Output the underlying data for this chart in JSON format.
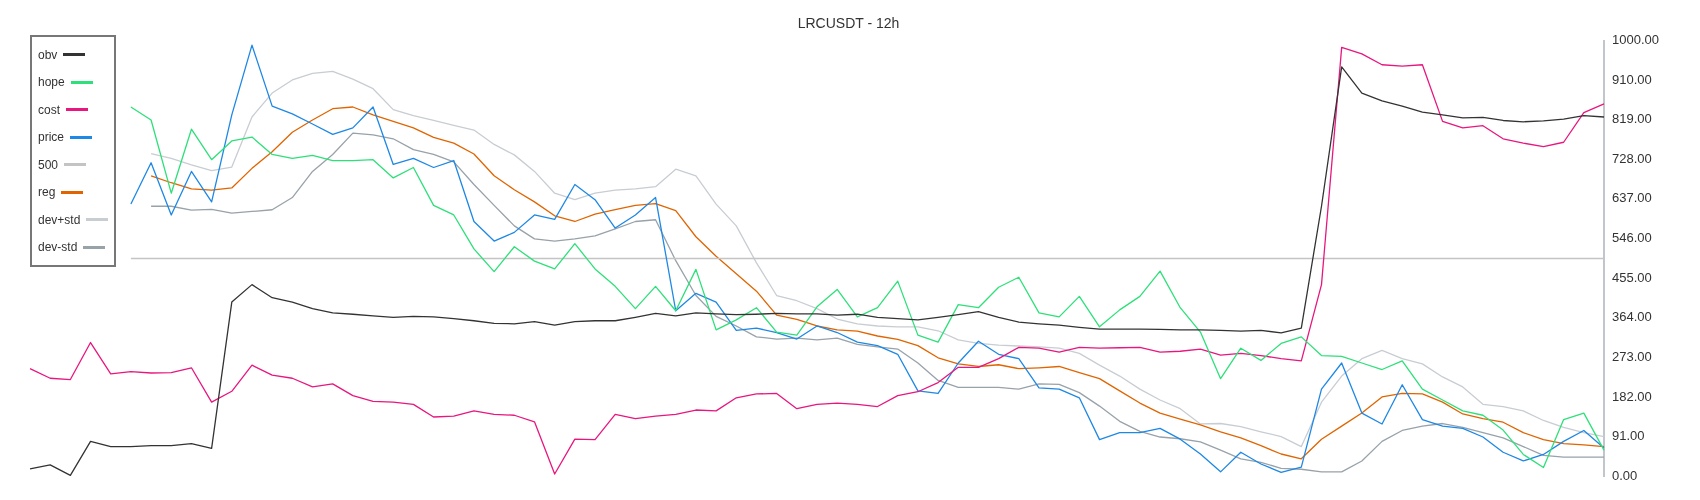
{
  "chart_data": {
    "type": "line",
    "title": "LRCUSDT - 12h",
    "categories": [
      null,
      null,
      null,
      null,
      null,
      null,
      null,
      null,
      null,
      null,
      null,
      null,
      null,
      null,
      null,
      null,
      null,
      null,
      null,
      null,
      null,
      null,
      null,
      null,
      null,
      null,
      null,
      null,
      null,
      null,
      null,
      null,
      null,
      null,
      null,
      null,
      null,
      null,
      null,
      null,
      null,
      null,
      null,
      null,
      null,
      null,
      null,
      null,
      null,
      null,
      null,
      null,
      null,
      null,
      null,
      null,
      null,
      null,
      null,
      null,
      null,
      null,
      null,
      null,
      null,
      null,
      null,
      null,
      null,
      null,
      null,
      null,
      null,
      null,
      null,
      null,
      null,
      null,
      null
    ],
    "series": [
      {
        "name": "obv",
        "color": "#333333",
        "values": [
          17,
          26,
          2,
          80,
          68,
          68,
          70,
          70,
          75,
          64,
          400,
          440,
          410,
          400,
          385,
          375,
          372,
          368,
          365,
          367,
          366,
          362,
          357,
          351,
          350,
          355,
          347,
          355,
          357,
          357,
          365,
          374,
          368,
          375,
          373,
          371,
          372,
          374,
          373,
          373,
          370,
          372,
          365,
          362,
          359,
          365,
          371,
          378,
          365,
          354,
          350,
          347,
          342,
          338,
          338,
          338,
          337,
          336,
          336,
          335,
          333,
          335,
          329,
          340,
          620,
          940,
          880,
          862,
          850,
          836,
          830,
          823,
          824,
          817,
          814,
          816,
          820,
          828,
          825
        ]
      },
      {
        "name": "hope",
        "color": "#2ee07a",
        "values": [
          null,
          null,
          null,
          null,
          null,
          848,
          818,
          650,
          797,
          727,
          770,
          779,
          739,
          730,
          737,
          725,
          725,
          727,
          685,
          709,
          622,
          600,
          522,
          470,
          527,
          494,
          476,
          534,
          476,
          436,
          385,
          436,
          380,
          475,
          336,
          359,
          387,
          331,
          324,
          389,
          429,
          366,
          387,
          448,
          324,
          308,
          394,
          387,
          434,
          457,
          375,
          366,
          413,
          343,
          382,
          413,
          471,
          387,
          331,
          224,
          294,
          266,
          305,
          320,
          277,
          275,
          260,
          245,
          265,
          200,
          175,
          150,
          140,
          106,
          50,
          20,
          130,
          145,
          60
        ]
      },
      {
        "name": "cost",
        "color": "#e8177f",
        "values": [
          247,
          225,
          222,
          307,
          235,
          240,
          237,
          238,
          249,
          170,
          195,
          255,
          232,
          225,
          205,
          212,
          185,
          172,
          170,
          165,
          136,
          138,
          150,
          142,
          140,
          125,
          5,
          85,
          84,
          142,
          132,
          138,
          142,
          152,
          150,
          180,
          189,
          190,
          155,
          165,
          168,
          165,
          160,
          185,
          194,
          215,
          250,
          250,
          270,
          296,
          294,
          285,
          296,
          294,
          295,
          296,
          285,
          287,
          292,
          278,
          282,
          277,
          270,
          265,
          440,
          985,
          970,
          945,
          942,
          945,
          815,
          800,
          805,
          775,
          765,
          757,
          767,
          835,
          855
        ]
      },
      {
        "name": "price",
        "color": "#1e88e5",
        "values": [
          null,
          null,
          null,
          null,
          null,
          625,
          720,
          600,
          700,
          630,
          830,
          990,
          850,
          832,
          809,
          785,
          800,
          848,
          716,
          730,
          709,
          725,
          585,
          540,
          560,
          600,
          590,
          670,
          635,
          570,
          600,
          640,
          380,
          420,
          400,
          335,
          340,
          330,
          315,
          345,
          330,
          308,
          300,
          280,
          196,
          190,
          260,
          310,
          280,
          270,
          203,
          200,
          180,
          84,
          100,
          100,
          110,
          85,
          51,
          10,
          55,
          28,
          9,
          21,
          200,
          260,
          145,
          120,
          210,
          130,
          115,
          110,
          90,
          55,
          35,
          50,
          80,
          105,
          65
        ]
      },
      {
        "name": "500",
        "color": "#c4c4c4",
        "values": [
          null,
          null,
          null,
          null,
          null,
          500,
          500,
          500,
          500,
          500,
          500,
          500,
          500,
          500,
          500,
          500,
          500,
          500,
          500,
          500,
          500,
          500,
          500,
          500,
          500,
          500,
          500,
          500,
          500,
          500,
          500,
          500,
          500,
          500,
          500,
          500,
          500,
          500,
          500,
          500,
          500,
          500,
          500,
          500,
          500,
          500,
          500,
          500,
          500,
          500,
          500,
          500,
          500,
          500,
          500,
          500,
          500,
          500,
          500,
          500,
          500,
          500,
          500,
          500,
          500,
          500,
          500,
          500,
          500,
          500,
          500,
          500,
          500,
          500,
          500,
          500,
          500,
          500,
          500
        ]
      },
      {
        "name": "reg",
        "color": "#e06500",
        "values": [
          null,
          null,
          null,
          null,
          null,
          null,
          690,
          674,
          660,
          657,
          662,
          707,
          745,
          790,
          818,
          844,
          848,
          830,
          815,
          800,
          778,
          765,
          740,
          690,
          658,
          630,
          598,
          585,
          602,
          612,
          622,
          626,
          610,
          550,
          505,
          465,
          425,
          370,
          360,
          345,
          336,
          333,
          322,
          314,
          300,
          272,
          258,
          252,
          256,
          247,
          249,
          252,
          238,
          224,
          196,
          168,
          145,
          131,
          118,
          102,
          88,
          70,
          51,
          40,
          85,
          115,
          145,
          182,
          190,
          189,
          170,
          143,
          132,
          124,
          100,
          84,
          75,
          72,
          68
        ]
      },
      {
        "name": "dev+std",
        "color": "#c8cdd2",
        "values": [
          null,
          null,
          null,
          null,
          null,
          null,
          741,
          730,
          715,
          702,
          710,
          825,
          880,
          910,
          925,
          930,
          912,
          890,
          842,
          828,
          817,
          806,
          795,
          762,
          738,
          700,
          650,
          635,
          650,
          657,
          660,
          665,
          705,
          690,
          625,
          575,
          490,
          415,
          403,
          385,
          361,
          350,
          345,
          343,
          343,
          334,
          313,
          305,
          301,
          299,
          297,
          294,
          282,
          255,
          230,
          200,
          175,
          155,
          120,
          121,
          114,
          102,
          91,
          68,
          170,
          230,
          270,
          289,
          270,
          258,
          228,
          205,
          165,
          160,
          150,
          128,
          112,
          100,
          91
        ]
      },
      {
        "name": "dev-std",
        "color": "#98a2a9",
        "values": [
          null,
          null,
          null,
          null,
          null,
          null,
          620,
          620,
          611,
          613,
          604,
          608,
          612,
          640,
          700,
          739,
          788,
          784,
          775,
          750,
          739,
          722,
          670,
          622,
          575,
          545,
          540,
          545,
          552,
          568,
          585,
          589,
          495,
          415,
          367,
          345,
          320,
          315,
          317,
          313,
          317,
          303,
          297,
          292,
          260,
          220,
          204,
          204,
          204,
          200,
          212,
          211,
          192,
          161,
          126,
          103,
          90,
          86,
          79,
          60,
          40,
          32,
          18,
          16,
          10,
          10,
          35,
          80,
          105,
          115,
          121,
          112,
          100,
          88,
          68,
          48,
          44,
          44,
          44
        ]
      }
    ],
    "ylim": [
      0,
      1000
    ],
    "yticks": [
      {
        "value": 0,
        "label": "0.00"
      },
      {
        "value": 91,
        "label": "91.00"
      },
      {
        "value": 182,
        "label": "182.00"
      },
      {
        "value": 273,
        "label": "273.00"
      },
      {
        "value": 364,
        "label": "364.00"
      },
      {
        "value": 455,
        "label": "455.00"
      },
      {
        "value": 546,
        "label": "546.00"
      },
      {
        "value": 637,
        "label": "637.00"
      },
      {
        "value": 728,
        "label": "728.00"
      },
      {
        "value": 819,
        "label": "819.00"
      },
      {
        "value": 910,
        "label": "910.00"
      },
      {
        "value": 1000,
        "label": "1000.00"
      }
    ],
    "tick_labels": "y",
    "legend": "top left",
    "marker": "none",
    "line_style": "solid"
  }
}
